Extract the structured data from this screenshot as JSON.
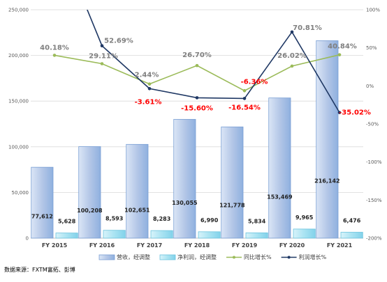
{
  "chart_data": {
    "type": "bar",
    "categories": [
      "FY 2015",
      "FY 2016",
      "FY 2017",
      "FY 2018",
      "FY 2019",
      "FY 2020",
      "FY 2021"
    ],
    "series": [
      {
        "name": "营收，经调整",
        "kind": "bar",
        "axis": "left",
        "values": [
          77612,
          100208,
          102651,
          130055,
          121778,
          153469,
          216142
        ],
        "labels": [
          "77,612",
          "100,208",
          "102,651",
          "130,055",
          "121,778",
          "153,469",
          "216,142"
        ]
      },
      {
        "name": "净利润，经调整",
        "kind": "bar",
        "axis": "left",
        "values": [
          5628,
          8593,
          8283,
          6990,
          5834,
          9965,
          6476
        ],
        "labels": [
          "5,628",
          "8,593",
          "8,283",
          "6,990",
          "5,834",
          "9,965",
          "6,476"
        ]
      },
      {
        "name": "同比增长%",
        "kind": "line",
        "axis": "right",
        "color": "#9bbb59",
        "values": [
          40.18,
          29.11,
          2.44,
          26.7,
          -6.36,
          26.02,
          40.84
        ],
        "labels": [
          "40.18%",
          "29.11%",
          "2.44%",
          "26.70%",
          "-6.36%",
          "26.02%",
          "40.84%"
        ]
      },
      {
        "name": "利润增长%",
        "kind": "line",
        "axis": "right",
        "color": "#1f3864",
        "values": [
          null,
          52.69,
          -3.61,
          -15.6,
          -16.54,
          70.81,
          -35.02
        ],
        "labels": [
          "",
          "52.69%",
          "-3.61%",
          "-15.60%",
          "-16.54%",
          "70.81%",
          "-35.02%"
        ]
      }
    ],
    "left_axis": {
      "min": 0,
      "max": 250000,
      "ticks": [
        "0",
        "50,000",
        "100,000",
        "150,000",
        "200,000",
        "250,000"
      ]
    },
    "right_axis": {
      "min": -200,
      "max": 100,
      "ticks": [
        "-200%",
        "-150%",
        "-100%",
        "-50%",
        "0%",
        "50%",
        "100%"
      ]
    },
    "grid": true,
    "legend_position": "bottom",
    "colors": {
      "revenue_bar": "#b4c7e7",
      "revenue_border": "#7a9fd4",
      "profit_bar": "#a9e3f2",
      "profit_border": "#6cc4de",
      "negative_label": "#ff0000",
      "positive_label": "#7f7f7f",
      "profit_positive_label": "#7f7f7f"
    }
  },
  "source_note": "数据来源：FXTM富拓、彭博"
}
